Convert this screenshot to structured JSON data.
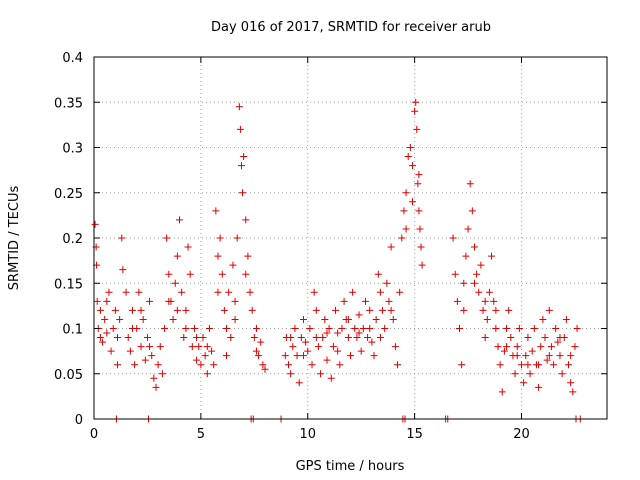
{
  "chart_data": {
    "type": "scatter",
    "title": "Day 016 of 2017, SRMTID for receiver arub",
    "xlabel": "GPS time / hours",
    "ylabel": "SRMTID / TECUs",
    "xlim": [
      0,
      24
    ],
    "ylim": [
      0,
      0.4
    ],
    "xticks": [
      0,
      5,
      10,
      15,
      20
    ],
    "yticks": [
      0,
      0.05,
      0.1,
      0.15,
      0.2,
      0.25,
      0.3,
      0.35,
      0.4
    ],
    "ytick_labels": [
      "0",
      "0.05",
      "0.1",
      "0.15",
      "0.2",
      "0.25",
      "0.3",
      "0.35",
      "0.4"
    ],
    "grid": true,
    "marker": "+",
    "color": "#e00000",
    "series": [
      {
        "name": "SRMTID",
        "points": [
          [
            0.05,
            0.215
          ],
          [
            0.1,
            0.19
          ],
          [
            0.12,
            0.17
          ],
          [
            0.15,
            0.13
          ],
          [
            0.2,
            0.1
          ],
          [
            0.3,
            0.12
          ],
          [
            0.4,
            0.085
          ],
          [
            0.5,
            0.11
          ],
          [
            0.6,
            0.095
          ],
          [
            0.7,
            0.14
          ],
          [
            0.8,
            0.075
          ],
          [
            0.9,
            0.1
          ],
          [
            1.0,
            0.12
          ],
          [
            1.1,
            0.06
          ],
          [
            1.2,
            0.11
          ],
          [
            1.3,
            0.2
          ],
          [
            1.35,
            0.165
          ],
          [
            1.5,
            0.14
          ],
          [
            1.6,
            0.09
          ],
          [
            1.7,
            0.075
          ],
          [
            1.8,
            0.12
          ],
          [
            1.9,
            0.06
          ],
          [
            2.0,
            0.1
          ],
          [
            2.1,
            0.14
          ],
          [
            2.2,
            0.08
          ],
          [
            2.3,
            0.11
          ],
          [
            2.4,
            0.065
          ],
          [
            2.5,
            0.09
          ],
          [
            2.6,
            0.13
          ],
          [
            2.7,
            0.07
          ],
          [
            2.8,
            0.045
          ],
          [
            2.9,
            0.035
          ],
          [
            3.0,
            0.06
          ],
          [
            3.1,
            0.08
          ],
          [
            3.2,
            0.05
          ],
          [
            3.3,
            0.1
          ],
          [
            3.4,
            0.2
          ],
          [
            3.5,
            0.16
          ],
          [
            3.6,
            0.13
          ],
          [
            3.7,
            0.11
          ],
          [
            3.8,
            0.15
          ],
          [
            3.9,
            0.18
          ],
          [
            4.0,
            0.22
          ],
          [
            4.1,
            0.14
          ],
          [
            4.2,
            0.09
          ],
          [
            4.3,
            0.12
          ],
          [
            4.4,
            0.19
          ],
          [
            4.5,
            0.16
          ],
          [
            4.6,
            0.08
          ],
          [
            4.7,
            0.1
          ],
          [
            4.8,
            0.065
          ],
          [
            4.9,
            0.08
          ],
          [
            5.0,
            0.06
          ],
          [
            5.1,
            0.09
          ],
          [
            5.2,
            0.07
          ],
          [
            5.3,
            0.05
          ],
          [
            5.4,
            0.1
          ],
          [
            5.5,
            0.075
          ],
          [
            5.6,
            0.06
          ],
          [
            5.7,
            0.23
          ],
          [
            5.8,
            0.18
          ],
          [
            5.9,
            0.2
          ],
          [
            6.0,
            0.16
          ],
          [
            6.1,
            0.12
          ],
          [
            6.2,
            0.1
          ],
          [
            6.3,
            0.14
          ],
          [
            6.4,
            0.09
          ],
          [
            6.5,
            0.17
          ],
          [
            6.6,
            0.13
          ],
          [
            6.7,
            0.2
          ],
          [
            6.8,
            0.345
          ],
          [
            6.85,
            0.32
          ],
          [
            6.9,
            0.28
          ],
          [
            6.95,
            0.25
          ],
          [
            7.0,
            0.29
          ],
          [
            7.1,
            0.22
          ],
          [
            7.2,
            0.18
          ],
          [
            7.3,
            0.14
          ],
          [
            7.4,
            0.12
          ],
          [
            7.5,
            0.09
          ],
          [
            7.6,
            0.1
          ],
          [
            7.7,
            0.07
          ],
          [
            7.8,
            0.085
          ],
          [
            7.9,
            0.06
          ],
          [
            8.0,
            0.055
          ],
          [
            8.95,
            0.07
          ],
          [
            9.0,
            0.09
          ],
          [
            9.1,
            0.06
          ],
          [
            9.2,
            0.05
          ],
          [
            9.3,
            0.08
          ],
          [
            9.4,
            0.1
          ],
          [
            9.5,
            0.07
          ],
          [
            9.6,
            0.04
          ],
          [
            9.7,
            0.09
          ],
          [
            9.8,
            0.11
          ],
          [
            9.9,
            0.085
          ],
          [
            10.0,
            0.075
          ],
          [
            10.1,
            0.1
          ],
          [
            10.2,
            0.06
          ],
          [
            10.3,
            0.14
          ],
          [
            10.4,
            0.12
          ],
          [
            10.5,
            0.08
          ],
          [
            10.6,
            0.05
          ],
          [
            10.7,
            0.09
          ],
          [
            10.8,
            0.11
          ],
          [
            10.9,
            0.065
          ],
          [
            11.0,
            0.1
          ],
          [
            11.1,
            0.045
          ],
          [
            11.2,
            0.08
          ],
          [
            11.3,
            0.12
          ],
          [
            11.4,
            0.095
          ],
          [
            11.5,
            0.06
          ],
          [
            11.6,
            0.1
          ],
          [
            11.7,
            0.13
          ],
          [
            11.8,
            0.11
          ],
          [
            11.9,
            0.09
          ],
          [
            12.0,
            0.07
          ],
          [
            12.1,
            0.14
          ],
          [
            12.2,
            0.1
          ],
          [
            12.3,
            0.09
          ],
          [
            12.4,
            0.115
          ],
          [
            12.5,
            0.075
          ],
          [
            12.6,
            0.1
          ],
          [
            12.7,
            0.13
          ],
          [
            12.8,
            0.09
          ],
          [
            12.9,
            0.12
          ],
          [
            13.0,
            0.085
          ],
          [
            13.1,
            0.07
          ],
          [
            13.2,
            0.11
          ],
          [
            13.3,
            0.16
          ],
          [
            13.4,
            0.14
          ],
          [
            13.5,
            0.12
          ],
          [
            13.6,
            0.1
          ],
          [
            13.7,
            0.15
          ],
          [
            13.8,
            0.13
          ],
          [
            13.9,
            0.19
          ],
          [
            14.0,
            0.11
          ],
          [
            14.1,
            0.08
          ],
          [
            14.2,
            0.06
          ],
          [
            14.3,
            0.14
          ],
          [
            14.4,
            0.2
          ],
          [
            14.5,
            0.23
          ],
          [
            14.6,
            0.25
          ],
          [
            14.7,
            0.29
          ],
          [
            14.8,
            0.3
          ],
          [
            14.9,
            0.28
          ],
          [
            15.0,
            0.34
          ],
          [
            15.05,
            0.35
          ],
          [
            15.1,
            0.32
          ],
          [
            15.15,
            0.26
          ],
          [
            15.2,
            0.23
          ],
          [
            15.25,
            0.21
          ],
          [
            15.3,
            0.19
          ],
          [
            15.35,
            0.17
          ],
          [
            16.8,
            0.2
          ],
          [
            16.9,
            0.16
          ],
          [
            17.0,
            0.13
          ],
          [
            17.1,
            0.1
          ],
          [
            17.2,
            0.06
          ],
          [
            17.3,
            0.15
          ],
          [
            17.4,
            0.18
          ],
          [
            17.5,
            0.21
          ],
          [
            17.6,
            0.26
          ],
          [
            17.7,
            0.23
          ],
          [
            17.8,
            0.19
          ],
          [
            17.9,
            0.16
          ],
          [
            18.0,
            0.14
          ],
          [
            18.1,
            0.17
          ],
          [
            18.2,
            0.12
          ],
          [
            18.3,
            0.09
          ],
          [
            18.4,
            0.11
          ],
          [
            18.5,
            0.14
          ],
          [
            18.6,
            0.18
          ],
          [
            18.7,
            0.13
          ],
          [
            18.8,
            0.1
          ],
          [
            18.9,
            0.08
          ],
          [
            19.0,
            0.06
          ],
          [
            19.1,
            0.03
          ],
          [
            19.2,
            0.075
          ],
          [
            19.3,
            0.1
          ],
          [
            19.4,
            0.12
          ],
          [
            19.5,
            0.09
          ],
          [
            19.6,
            0.07
          ],
          [
            19.7,
            0.05
          ],
          [
            19.8,
            0.08
          ],
          [
            19.9,
            0.1
          ],
          [
            20.0,
            0.06
          ],
          [
            20.1,
            0.04
          ],
          [
            20.2,
            0.07
          ],
          [
            20.3,
            0.09
          ],
          [
            20.4,
            0.05
          ],
          [
            20.5,
            0.075
          ],
          [
            20.6,
            0.1
          ],
          [
            20.7,
            0.06
          ],
          [
            20.8,
            0.035
          ],
          [
            20.9,
            0.08
          ],
          [
            21.0,
            0.11
          ],
          [
            21.1,
            0.09
          ],
          [
            21.2,
            0.065
          ],
          [
            21.3,
            0.12
          ],
          [
            21.4,
            0.08
          ],
          [
            21.5,
            0.06
          ],
          [
            21.6,
            0.1
          ],
          [
            21.7,
            0.085
          ],
          [
            21.8,
            0.07
          ],
          [
            21.9,
            0.05
          ],
          [
            22.0,
            0.09
          ],
          [
            22.1,
            0.11
          ],
          [
            22.2,
            0.06
          ],
          [
            22.3,
            0.04
          ],
          [
            22.4,
            0.03
          ],
          [
            22.5,
            0.08
          ],
          [
            22.6,
            0.1
          ],
          [
            0.3,
            0.09
          ],
          [
            0.6,
            0.13
          ],
          [
            1.1,
            0.09
          ],
          [
            1.8,
            0.1
          ],
          [
            2.2,
            0.12
          ],
          [
            2.6,
            0.08
          ],
          [
            3.5,
            0.13
          ],
          [
            3.9,
            0.12
          ],
          [
            4.3,
            0.1
          ],
          [
            4.8,
            0.09
          ],
          [
            5.3,
            0.08
          ],
          [
            5.8,
            0.14
          ],
          [
            6.2,
            0.07
          ],
          [
            6.6,
            0.11
          ],
          [
            7.1,
            0.16
          ],
          [
            7.6,
            0.075
          ],
          [
            9.2,
            0.09
          ],
          [
            9.8,
            0.07
          ],
          [
            10.4,
            0.09
          ],
          [
            10.9,
            0.095
          ],
          [
            11.4,
            0.075
          ],
          [
            11.9,
            0.11
          ],
          [
            12.4,
            0.095
          ],
          [
            12.9,
            0.1
          ],
          [
            13.4,
            0.09
          ],
          [
            13.9,
            0.12
          ],
          [
            14.6,
            0.21
          ],
          [
            14.9,
            0.24
          ],
          [
            15.2,
            0.27
          ],
          [
            17.3,
            0.12
          ],
          [
            17.8,
            0.15
          ],
          [
            18.3,
            0.13
          ],
          [
            18.8,
            0.12
          ],
          [
            19.3,
            0.08
          ],
          [
            19.8,
            0.07
          ],
          [
            20.3,
            0.06
          ],
          [
            20.8,
            0.06
          ],
          [
            21.3,
            0.07
          ],
          [
            21.8,
            0.09
          ],
          [
            22.3,
            0.07
          ],
          [
            1.05,
            0.0
          ],
          [
            2.55,
            0.0
          ],
          [
            7.35,
            0.0
          ],
          [
            7.45,
            0.0
          ],
          [
            8.75,
            0.0
          ],
          [
            14.45,
            0.0
          ],
          [
            14.55,
            0.0
          ],
          [
            16.45,
            0.0
          ],
          [
            16.55,
            0.0
          ],
          [
            22.55,
            0.0
          ],
          [
            22.75,
            0.0
          ]
        ]
      }
    ]
  }
}
